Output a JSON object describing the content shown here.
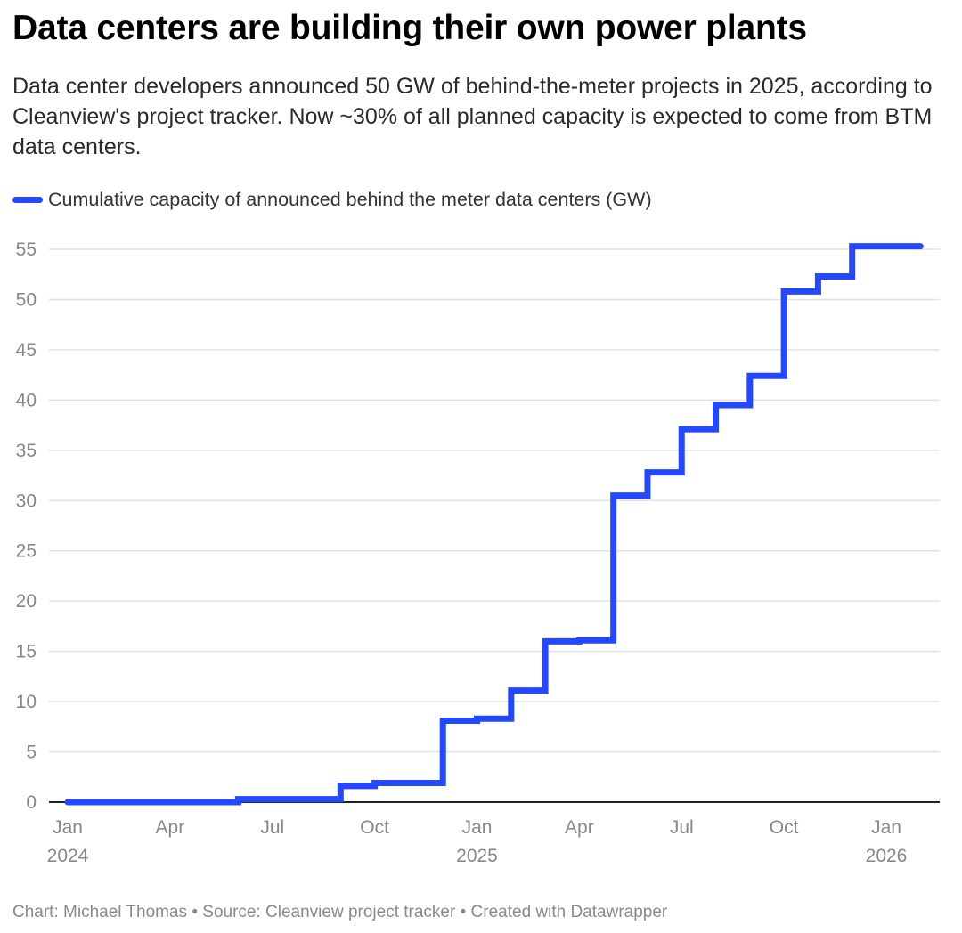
{
  "header": {
    "title": "Data centers are building their own power plants",
    "subtitle": "Data center developers announced 50 GW of behind-the-meter projects in 2025, according to Cleanview's project tracker. Now ~30% of all planned capacity is expected to come from BTM data centers."
  },
  "footer": {
    "text": "Chart: Michael Thomas • Source: Cleanview project tracker • Created with Datawrapper"
  },
  "colors": {
    "series": "#2348ff",
    "grid": "#e2e2e2",
    "axis": "#222222",
    "tick_text": "#888888"
  },
  "chart_data": {
    "type": "line",
    "step": true,
    "title": "Data centers are building their own power plants",
    "xlabel": "",
    "ylabel": "",
    "ylim": [
      0,
      55
    ],
    "xlim": [
      "2024-01",
      "2026-02"
    ],
    "grid": true,
    "legend_placement": "top-left",
    "y_ticks": [
      0,
      5,
      10,
      15,
      20,
      25,
      30,
      35,
      40,
      45,
      50,
      55
    ],
    "x_ticks": [
      {
        "month": 0,
        "label": "Jan",
        "sublabel": "2024"
      },
      {
        "month": 3,
        "label": "Apr",
        "sublabel": ""
      },
      {
        "month": 6,
        "label": "Jul",
        "sublabel": ""
      },
      {
        "month": 9,
        "label": "Oct",
        "sublabel": ""
      },
      {
        "month": 12,
        "label": "Jan",
        "sublabel": "2025"
      },
      {
        "month": 15,
        "label": "Apr",
        "sublabel": ""
      },
      {
        "month": 18,
        "label": "Jul",
        "sublabel": ""
      },
      {
        "month": 21,
        "label": "Oct",
        "sublabel": ""
      },
      {
        "month": 24,
        "label": "Jan",
        "sublabel": "2026"
      }
    ],
    "series": [
      {
        "name": "Cumulative capacity of announced behind the meter data centers (GW)",
        "points": [
          {
            "x": "2024-01",
            "month": 0,
            "y": 0
          },
          {
            "x": "2024-06",
            "month": 5,
            "y": 0.3
          },
          {
            "x": "2024-09",
            "month": 8,
            "y": 1.6
          },
          {
            "x": "2024-10",
            "month": 9,
            "y": 1.9
          },
          {
            "x": "2024-12",
            "month": 11,
            "y": 8.1
          },
          {
            "x": "2025-01",
            "month": 12,
            "y": 8.3
          },
          {
            "x": "2025-02",
            "month": 13,
            "y": 11.1
          },
          {
            "x": "2025-03",
            "month": 14,
            "y": 16.0
          },
          {
            "x": "2025-04",
            "month": 15,
            "y": 16.1
          },
          {
            "x": "2025-05",
            "month": 16,
            "y": 30.5
          },
          {
            "x": "2025-06",
            "month": 17,
            "y": 32.8
          },
          {
            "x": "2025-07",
            "month": 18,
            "y": 37.1
          },
          {
            "x": "2025-08",
            "month": 19,
            "y": 39.5
          },
          {
            "x": "2025-09",
            "month": 20,
            "y": 42.4
          },
          {
            "x": "2025-10",
            "month": 21,
            "y": 50.8
          },
          {
            "x": "2025-11",
            "month": 22,
            "y": 52.3
          },
          {
            "x": "2025-12",
            "month": 23,
            "y": 55.3
          },
          {
            "x": "2026-02",
            "month": 25,
            "y": 55.3
          }
        ]
      }
    ]
  }
}
